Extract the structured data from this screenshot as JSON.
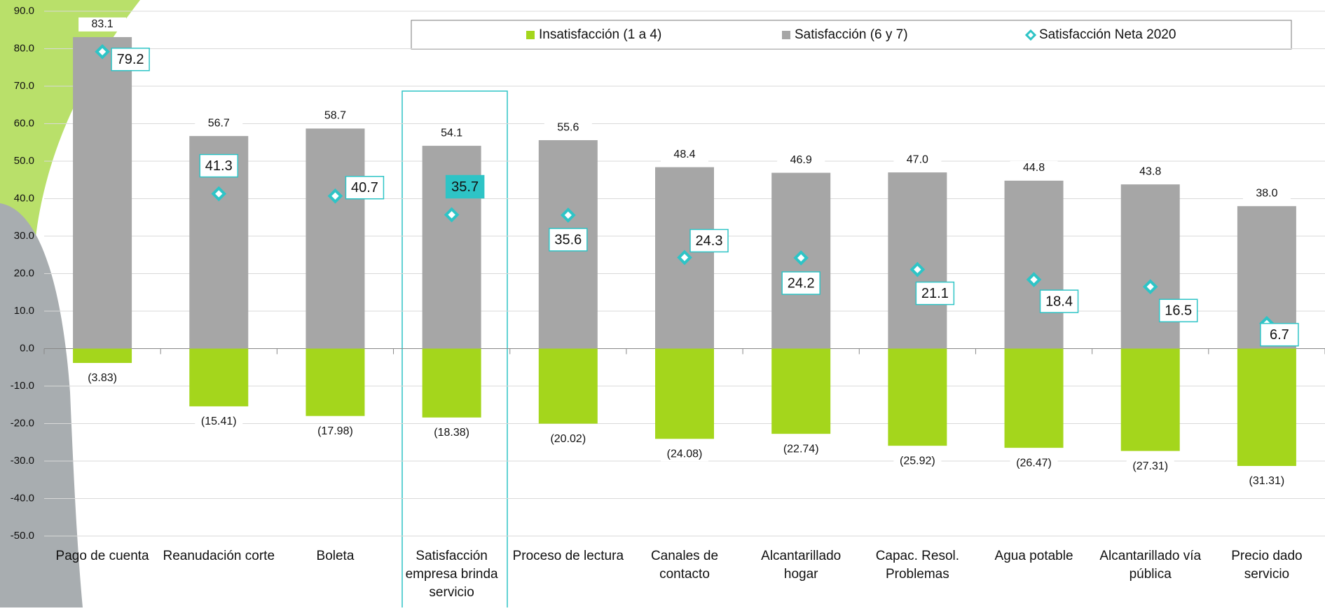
{
  "chart_data": {
    "type": "bar",
    "categories": [
      [
        "Pago de cuenta"
      ],
      [
        "Reanudación corte"
      ],
      [
        "Boleta"
      ],
      [
        "Satisfacción",
        "empresa brinda",
        "servicio"
      ],
      [
        "Proceso de lectura"
      ],
      [
        "Canales de",
        "contacto"
      ],
      [
        "Alcantarillado",
        "hogar"
      ],
      [
        "Capac. Resol.",
        "Problemas"
      ],
      [
        "Agua potable"
      ],
      [
        "Alcantarillado vía",
        "pública"
      ],
      [
        "Precio dado",
        "servicio"
      ]
    ],
    "series": [
      {
        "name": "Insatisfacción (1 a 4)",
        "color": "#a4d61c",
        "values": [
          -3.83,
          -15.41,
          -17.98,
          -18.38,
          -20.02,
          -24.08,
          -22.74,
          -25.92,
          -26.47,
          -27.31,
          -31.31
        ],
        "value_labels": [
          "(3.83)",
          "(15.41)",
          "(17.98)",
          "(18.38)",
          "(20.02)",
          "(24.08)",
          "(22.74)",
          "(25.92)",
          "(26.47)",
          "(27.31)",
          "(31.31)"
        ]
      },
      {
        "name": "Satisfacción (6 y 7)",
        "color": "#a6a6a6",
        "values": [
          83.1,
          56.7,
          58.7,
          54.1,
          55.6,
          48.4,
          46.9,
          47.0,
          44.8,
          43.8,
          38.0
        ],
        "value_labels": [
          "83.1",
          "56.7",
          "58.7",
          "54.1",
          "55.6",
          "48.4",
          "46.9",
          "47.0",
          "44.8",
          "43.8",
          "38.0"
        ]
      },
      {
        "name": "Satisfacción Neta 2020",
        "color": "#2ec4c6",
        "marker": "diamond",
        "values": [
          79.2,
          41.3,
          40.7,
          35.7,
          35.6,
          24.3,
          24.2,
          21.1,
          18.4,
          16.5,
          6.7
        ]
      }
    ],
    "ylim": [
      -50,
      90
    ],
    "yticks": [
      {
        "value": -50,
        "label": "-50.0"
      },
      {
        "value": -40,
        "label": "-40.0"
      },
      {
        "value": -30,
        "label": "-30.0"
      },
      {
        "value": -20,
        "label": "-20.0"
      },
      {
        "value": -10,
        "label": "-10.0"
      },
      {
        "value": 0,
        "label": "0.0"
      },
      {
        "value": 10,
        "label": "10.0"
      },
      {
        "value": 20,
        "label": "20.0"
      },
      {
        "value": 30,
        "label": "30.0"
      },
      {
        "value": 40,
        "label": "40.0"
      },
      {
        "value": 50,
        "label": "50.0"
      },
      {
        "value": 60,
        "label": "60.0"
      },
      {
        "value": 70,
        "label": "70.0"
      },
      {
        "value": 80,
        "label": "80.0"
      },
      {
        "value": 90,
        "label": "90.0"
      }
    ],
    "grid": true,
    "legend": "top"
  }
}
